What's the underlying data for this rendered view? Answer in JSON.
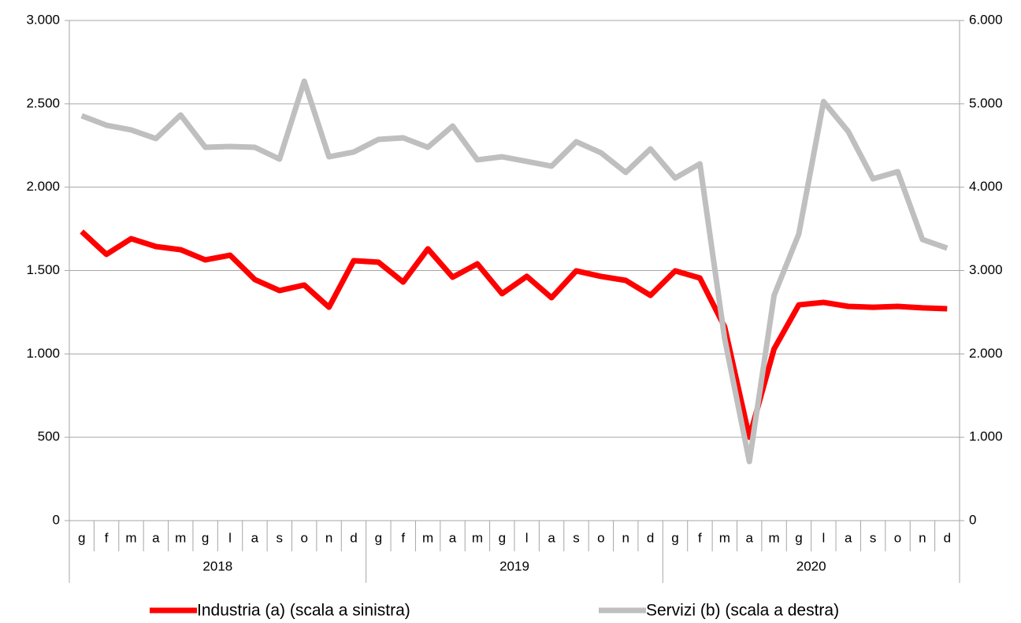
{
  "chart_data": {
    "type": "line",
    "categories": [
      "g",
      "f",
      "m",
      "a",
      "m",
      "g",
      "l",
      "a",
      "s",
      "o",
      "n",
      "d",
      "g",
      "f",
      "m",
      "a",
      "m",
      "g",
      "l",
      "a",
      "s",
      "o",
      "n",
      "d",
      "g",
      "f",
      "m",
      "a",
      "m",
      "g",
      "l",
      "a",
      "s",
      "o",
      "n",
      "d"
    ],
    "category_groups": [
      "2018",
      "2019",
      "2020"
    ],
    "series": [
      {
        "name": "Industria (a) (scala a sinistra)",
        "color": "#ff0000",
        "axis": "y",
        "values": [
          1734,
          1597,
          1691,
          1644,
          1625,
          1564,
          1592,
          1446,
          1380,
          1413,
          1280,
          1559,
          1550,
          1431,
          1630,
          1460,
          1540,
          1361,
          1465,
          1337,
          1498,
          1465,
          1441,
          1351,
          1498,
          1455,
          1162,
          500,
          1030,
          1294,
          1309,
          1285,
          1280,
          1285,
          1276,
          1271
        ]
      },
      {
        "name": "Servizi (b) (scala a destra)",
        "color": "#bfbfbf",
        "axis": "y2",
        "values": [
          4857,
          4743,
          4687,
          4583,
          4866,
          4479,
          4488,
          4479,
          4337,
          5272,
          4365,
          4422,
          4573,
          4592,
          4479,
          4734,
          4328,
          4365,
          4309,
          4252,
          4545,
          4413,
          4177,
          4460,
          4110,
          4280,
          2183,
          709,
          2702,
          3439,
          5027,
          4668,
          4101,
          4186,
          3373,
          3269
        ]
      }
    ],
    "ylim": [
      0,
      3000
    ],
    "yticks": [
      0,
      500,
      {
        "value": 1000,
        "label": "1.000"
      },
      {
        "value": 1500,
        "label": "1.500"
      },
      {
        "value": 2000,
        "label": "2.000"
      },
      {
        "value": 2500,
        "label": "2.500"
      },
      {
        "value": 3000,
        "label": "3.000"
      }
    ],
    "y2lim": [
      0,
      6000
    ],
    "y2ticks": [
      0,
      {
        "value": 1000,
        "label": "1.000"
      },
      {
        "value": 2000,
        "label": "2.000"
      },
      {
        "value": 3000,
        "label": "3.000"
      },
      {
        "value": 4000,
        "label": "4.000"
      },
      {
        "value": 5000,
        "label": "5.000"
      },
      {
        "value": 6000,
        "label": "6.000"
      }
    ],
    "grid": true,
    "legend": "bottom"
  }
}
